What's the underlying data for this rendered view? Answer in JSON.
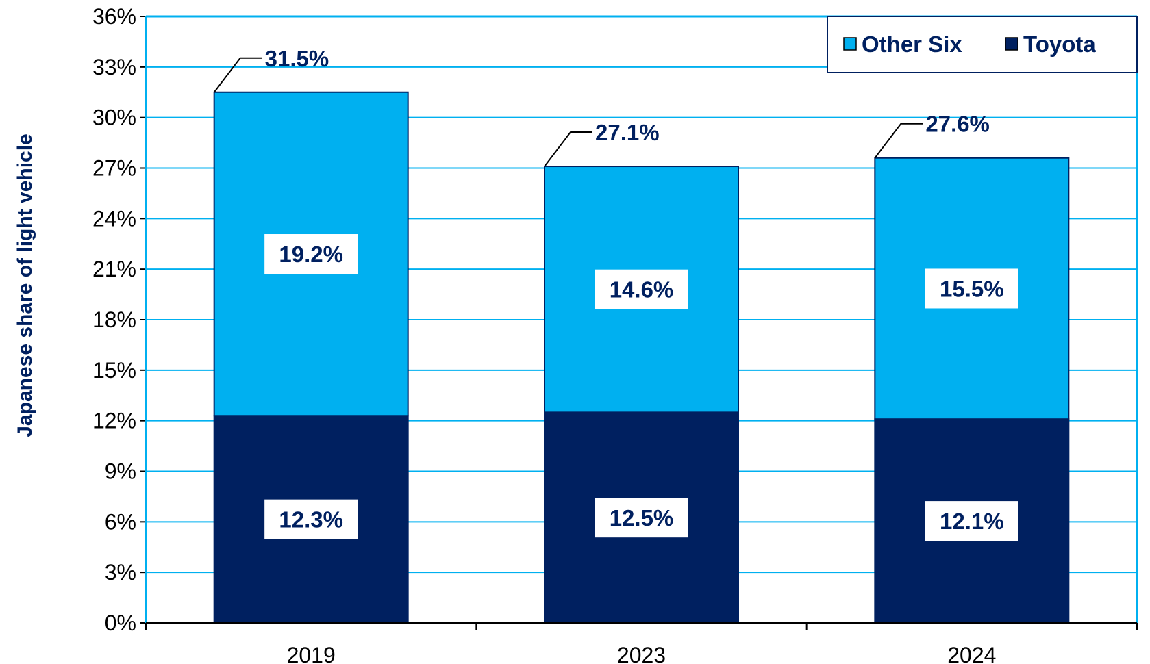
{
  "chart_data": {
    "type": "bar",
    "stacked": true,
    "title": "",
    "xlabel": "",
    "ylabel": "Japanese share of light vehicle",
    "categories": [
      "2019",
      "2023",
      "2024"
    ],
    "ylim": [
      0,
      36
    ],
    "yticks": [
      0,
      3,
      6,
      9,
      12,
      15,
      18,
      21,
      24,
      27,
      30,
      33,
      36
    ],
    "ytick_labels": [
      "0%",
      "3%",
      "6%",
      "9%",
      "12%",
      "15%",
      "18%",
      "21%",
      "24%",
      "27%",
      "30%",
      "33%",
      "36%"
    ],
    "grid": true,
    "legend_position": "top-right",
    "series": [
      {
        "name": "Toyota",
        "color": "#002060",
        "values": [
          12.3,
          12.5,
          12.1
        ],
        "labels": [
          "12.3%",
          "12.5%",
          "12.1%"
        ]
      },
      {
        "name": "Other Six",
        "color": "#00B0F0",
        "values": [
          19.2,
          14.6,
          15.5
        ],
        "labels": [
          "19.2%",
          "14.6%",
          "15.5%"
        ]
      }
    ],
    "totals": [
      31.5,
      27.1,
      27.6
    ],
    "total_labels": [
      "31.5%",
      "27.1%",
      "27.6%"
    ],
    "legend_order": [
      "Other Six",
      "Toyota"
    ]
  }
}
